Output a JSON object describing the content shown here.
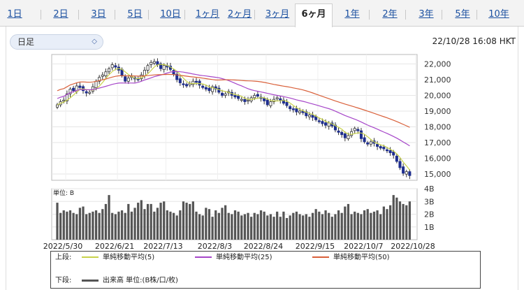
{
  "tabs": [
    {
      "label": "1日",
      "active": false
    },
    {
      "label": "2日",
      "active": false
    },
    {
      "label": "3日",
      "active": false
    },
    {
      "label": "5日",
      "active": false
    },
    {
      "label": "10日",
      "active": false
    },
    {
      "label": "1ヶ月",
      "active": false
    },
    {
      "label": "2ヶ月",
      "active": false
    },
    {
      "label": "3ヶ月",
      "active": false
    },
    {
      "label": "6ヶ月",
      "active": true
    },
    {
      "label": "1年",
      "active": false
    },
    {
      "label": "2年",
      "active": false
    },
    {
      "label": "3年",
      "active": false
    },
    {
      "label": "5年",
      "active": false
    },
    {
      "label": "10年",
      "active": false
    }
  ],
  "period_select": {
    "value": "日足"
  },
  "timestamp": "22/10/28 16:08 HKT",
  "colors": {
    "up": "#ffffff",
    "down": "#1f2f8f",
    "ma5": "#c8d24a",
    "ma25": "#a646c9",
    "ma50": "#d9603a",
    "volume": "#555555"
  },
  "chart_data": [
    {
      "type": "candlestick",
      "ylim": [
        14600,
        22600
      ],
      "yticks": [
        "22,000",
        "21,000",
        "20,000",
        "19,000",
        "18,000",
        "17,000",
        "16,000",
        "15,000"
      ],
      "xticks": [
        "2022/5/30",
        "2022/6/21",
        "2022/7/13",
        "2022/8/3",
        "2022/8/24",
        "2022/9/15",
        "2022/10/7",
        "2022/10/28"
      ],
      "close": [
        19400,
        19600,
        19700,
        20100,
        20400,
        20300,
        20600,
        20500,
        20300,
        20150,
        20200,
        20550,
        20900,
        21150,
        21300,
        21500,
        21700,
        21950,
        21800,
        21600,
        21250,
        20900,
        21100,
        21200,
        21050,
        21000,
        21300,
        21600,
        21900,
        22100,
        22150,
        21950,
        21700,
        21900,
        21800,
        21650,
        21350,
        21000,
        20800,
        20700,
        20600,
        20750,
        20900,
        20850,
        20650,
        20500,
        20400,
        20300,
        20550,
        20400,
        20200,
        20000,
        20100,
        20250,
        20000,
        19900,
        19800,
        19750,
        19600,
        19700,
        19850,
        20000,
        19950,
        19800,
        19650,
        19400,
        19600,
        19750,
        19850,
        19700,
        19500,
        19350,
        19150,
        19100,
        18950,
        19000,
        18900,
        18700,
        18750,
        18600,
        18450,
        18350,
        18200,
        18100,
        18250,
        18050,
        17800,
        17650,
        17500,
        17300,
        17450,
        17700,
        17900,
        17750,
        17250,
        17050,
        16900,
        17050,
        16950,
        16750,
        16650,
        16600,
        16500,
        16350,
        16200,
        15800,
        15400,
        15050,
        15150,
        14900
      ],
      "ma": [
        {
          "name": "単純移動平均(5)",
          "color": "#c8d24a"
        },
        {
          "name": "単純移動平均(25)",
          "color": "#a646c9"
        },
        {
          "name": "単純移動平均(50)",
          "color": "#d9603a"
        }
      ]
    },
    {
      "type": "bar",
      "label": "単位: B",
      "ylim": [
        0,
        4
      ],
      "yticks": [
        "4B",
        "3B",
        "2B",
        "1B"
      ],
      "values": [
        2.9,
        2.1,
        2.3,
        2.2,
        2.3,
        2.1,
        2.0,
        2.5,
        2.6,
        2.0,
        2.1,
        2.2,
        2.3,
        2.1,
        2.4,
        2.8,
        3.5,
        2.1,
        2.0,
        2.2,
        2.3,
        2.1,
        2.8,
        2.2,
        2.5,
        2.9,
        3.1,
        2.4,
        2.8,
        2.8,
        2.2,
        2.5,
        2.9,
        3.0,
        2.3,
        2.2,
        2.1,
        1.9,
        2.3,
        3.0,
        2.9,
        2.8,
        3.0,
        2.2,
        2.0,
        1.9,
        2.5,
        2.4,
        1.8,
        2.3,
        2.1,
        2.5,
        2.7,
        2.1,
        2.0,
        2.3,
        2.2,
        1.9,
        2.0,
        2.1,
        1.8,
        2.1,
        2.0,
        2.3,
        2.2,
        1.9,
        2.0,
        1.8,
        2.2,
        1.8,
        2.2,
        1.7,
        1.9,
        2.1,
        2.2,
        2.0,
        1.9,
        2.0,
        1.8,
        2.1,
        2.4,
        2.2,
        2.0,
        2.3,
        2.1,
        1.8,
        2.0,
        2.3,
        2.1,
        2.6,
        2.8,
        2.0,
        2.2,
        2.1,
        2.0,
        2.3,
        2.4,
        2.1,
        2.2,
        2.3,
        2.0,
        2.6,
        2.4,
        2.7,
        3.5,
        3.3,
        3.0,
        2.8,
        2.7,
        3.0
      ]
    }
  ],
  "legend": {
    "upper_label": "上段:",
    "lower_label": "下段:",
    "ma5": "単純移動平均(5)",
    "ma25": "単純移動平均(25)",
    "ma50": "単純移動平均(50)",
    "volume": "出来高 単位:(B株/口/枚)"
  }
}
